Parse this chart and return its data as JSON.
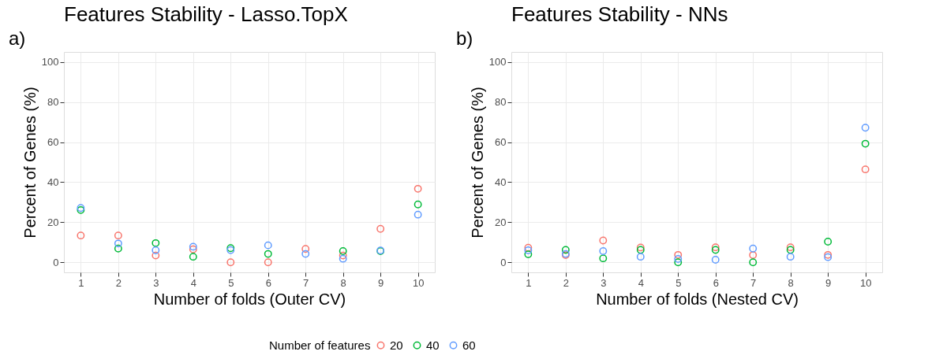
{
  "chart_data": [
    {
      "type": "scatter",
      "title": "Features Stability - Lasso.TopX",
      "xlabel": "Number of folds (Outer CV)",
      "ylabel": "Percent of Genes (%)",
      "annotations": [
        "a)"
      ],
      "legend_title": "Number of features",
      "legend": "bottom",
      "marker": "circle",
      "grid": true,
      "x": [
        1,
        2,
        3,
        4,
        5,
        6,
        7,
        8,
        9,
        10
      ],
      "xlim": [
        0.55,
        10.45
      ],
      "xticks": [
        1,
        2,
        3,
        4,
        5,
        6,
        7,
        8,
        9,
        10
      ],
      "ylim": [
        -5,
        105
      ],
      "yticks": [
        0,
        20,
        40,
        60,
        80,
        100
      ],
      "series": [
        {
          "name": "20",
          "color": "#f8766d",
          "values": [
            13.4,
            13.4,
            3.4,
            6.5,
            0,
            0,
            6.7,
            3.4,
            16.7,
            36.7
          ]
        },
        {
          "name": "40",
          "color": "#00ba38",
          "values": [
            26.1,
            6.9,
            9.6,
            2.8,
            7.1,
            4.2,
            null,
            5.6,
            5.6,
            28.9
          ]
        },
        {
          "name": "60",
          "color": "#619cff",
          "values": [
            27.1,
            9.4,
            6.0,
            7.8,
            6.1,
            8.5,
            4.2,
            1.8,
            5.9,
            23.8
          ]
        }
      ]
    },
    {
      "type": "scatter",
      "title": "Features Stability - NNs",
      "xlabel": "Number of folds (Nested CV)",
      "ylabel": "Percent of Genes (%)",
      "annotations": [
        "b)"
      ],
      "legend": "bottom",
      "marker": "circle",
      "grid": true,
      "x": [
        1,
        2,
        3,
        4,
        5,
        6,
        7,
        8,
        9,
        10
      ],
      "xlim": [
        0.55,
        10.45
      ],
      "xticks": [
        1,
        2,
        3,
        4,
        5,
        6,
        7,
        8,
        9,
        10
      ],
      "ylim": [
        -5,
        105
      ],
      "yticks": [
        0,
        20,
        40,
        60,
        80,
        100
      ],
      "series": [
        {
          "name": "20",
          "color": "#f8766d",
          "values": [
            7.3,
            3.6,
            10.9,
            7.4,
            3.7,
            7.5,
            3.6,
            7.5,
            3.7,
            46.4
          ]
        },
        {
          "name": "40",
          "color": "#00ba38",
          "values": [
            4.0,
            6.2,
            2.0,
            6.2,
            0,
            6.2,
            0,
            6.2,
            10.3,
            59.2
          ]
        },
        {
          "name": "60",
          "color": "#619cff",
          "values": [
            6.0,
            4.2,
            5.6,
            2.8,
            1.7,
            1.3,
            6.9,
            2.8,
            2.6,
            67.2
          ]
        }
      ]
    }
  ]
}
